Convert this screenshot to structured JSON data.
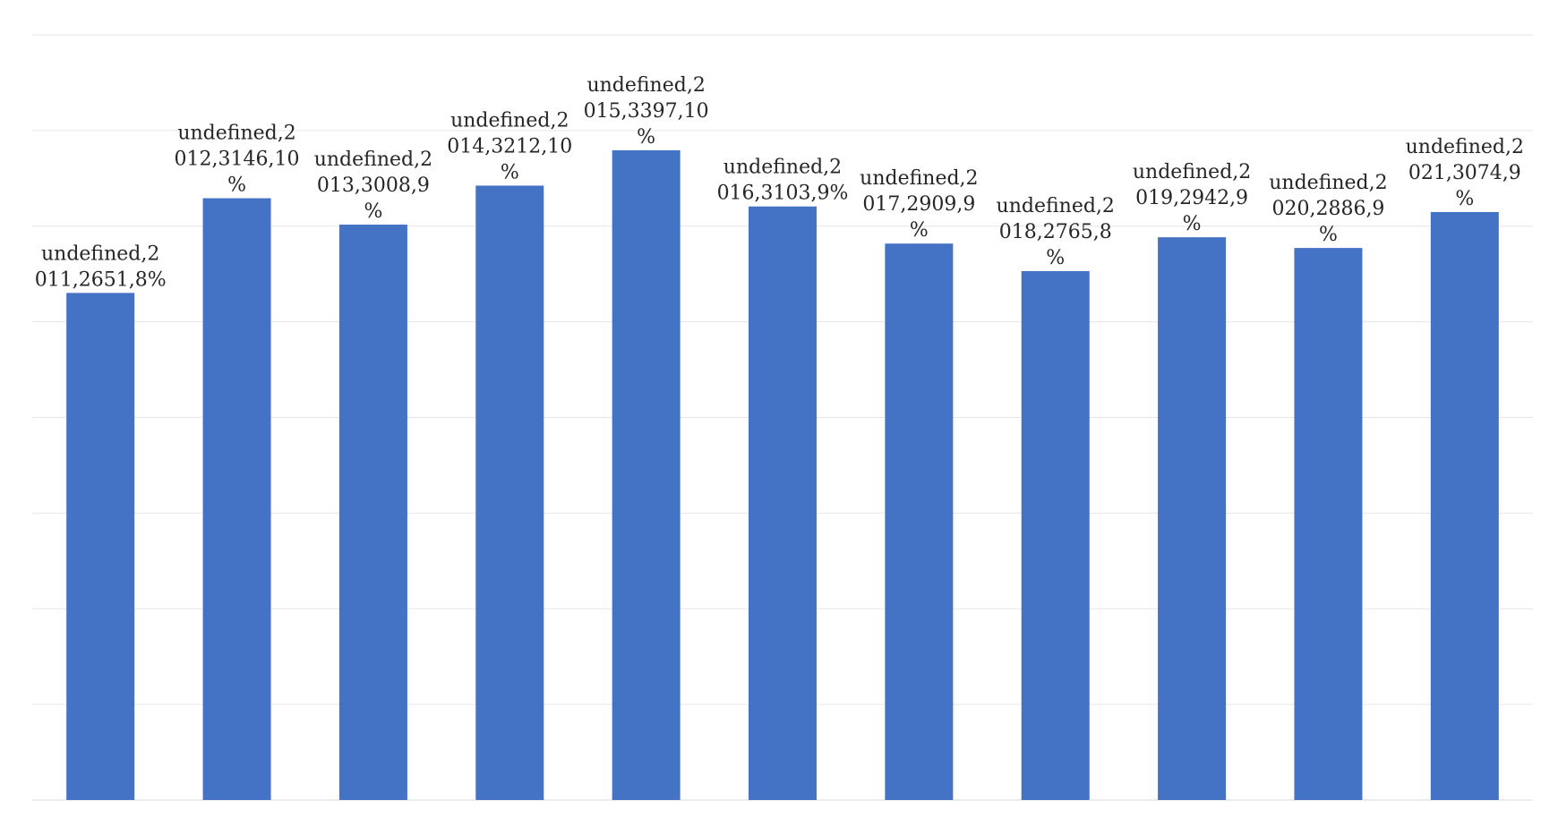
{
  "chart_data": {
    "type": "bar",
    "title": "",
    "xlabel": "",
    "ylabel": "",
    "ylim": [
      0,
      4000
    ],
    "gridlines": [
      0,
      500,
      1000,
      1500,
      2000,
      2500,
      3000,
      3500,
      4000
    ],
    "grid": true,
    "axis_labels_visible": false,
    "legend": "none",
    "colors": {
      "bar": "#4472C4",
      "grid": "#E6E6E6",
      "label": "#262626"
    },
    "categories": [
      "2011",
      "2012",
      "2013",
      "2014",
      "2015",
      "2016",
      "2017",
      "2018",
      "2019",
      "2020",
      "2021"
    ],
    "values": [
      2651,
      3146,
      3008,
      3212,
      3397,
      3103,
      2909,
      2765,
      2942,
      2886,
      3074
    ],
    "labels": [
      [
        "undefined,2",
        "011,2651,8%"
      ],
      [
        "undefined,2",
        "012,3146,10",
        "%"
      ],
      [
        "undefined,2",
        "013,3008,9",
        "%"
      ],
      [
        "undefined,2",
        "014,3212,10",
        "%"
      ],
      [
        "undefined,2",
        "015,3397,10",
        "%"
      ],
      [
        "undefined,2",
        "016,3103,9%"
      ],
      [
        "undefined,2",
        "017,2909,9",
        "%"
      ],
      [
        "undefined,2",
        "018,2765,8",
        "%"
      ],
      [
        "undefined,2",
        "019,2942,9",
        "%"
      ],
      [
        "undefined,2",
        "020,2886,9",
        "%"
      ],
      [
        "undefined,2",
        "021,3074,9",
        "%"
      ]
    ]
  }
}
